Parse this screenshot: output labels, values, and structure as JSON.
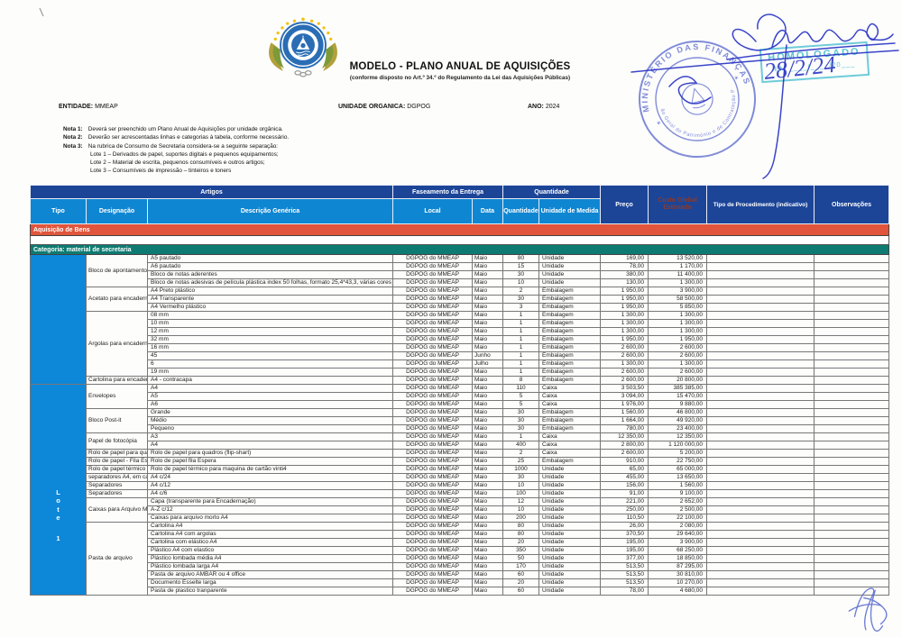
{
  "header": {
    "title": "MODELO - PLANO ANUAL DE AQUISIÇÕES",
    "subtitle": "(conforme disposto no Art.º 34.º do Regulamento da Lei das Aquisições Públicas)",
    "entidade_label": "ENTIDADE:",
    "entidade_value": "MMEAP",
    "unidade_label": "UNIDADE ORGANICA:",
    "unidade_value": "DGPOG",
    "ano_label": "ANO:",
    "ano_value": "2024"
  },
  "notes": [
    {
      "label": "Nota 1:",
      "text": "Deverá ser preenchido um Plano Anual de Aquisições por unidade orgânica."
    },
    {
      "label": "Nota 2:",
      "text": "Deverão ser acrescentadas linhas e categorias à tabela, conforme necessário."
    },
    {
      "label": "Nota 3:",
      "text": "Na rubrica de Consumo de Secretaria considera-se a seguinte separação:"
    }
  ],
  "lotes": [
    "Lote 1 – Derivados de papel, suportes digitais e pequenos equipamentos;",
    "Lote 2 – Material de escrita, pequenos consumíveis e outros artigos;",
    "Lote 3 – Consumíveis de impressão – tinteiros e toners"
  ],
  "stamps": {
    "homologado_line1": "HOMOLOGADO",
    "homologado_line2": "EM ____/____/20___",
    "date_hand": "28/2/24",
    "ministry_outer": "MINISTÉRIO DAS FINANÇAS",
    "ministry_inner": "Direcção Geral do Património e de Contratação Pública"
  },
  "colors": {
    "header_navy": "#1c4598",
    "header_blue": "#0f86d2",
    "band_red": "#e0553b",
    "band_teal": "#0e7b72",
    "stamp_teal": "#29b4c8",
    "stamp_violet": "#6b79d2",
    "ink_blue": "#2a35c5"
  },
  "table": {
    "band_artigos": "Artigos",
    "band_faseamento": "Faseamento da Entrega",
    "band_quantidade": "Quantidade",
    "col_tipo": "Tipo",
    "col_designacao": "Designação",
    "col_descricao": "Descrição Genérica",
    "col_local": "Local",
    "col_data": "Data",
    "col_quantidade": "Quantidade",
    "col_unidade": "Unidade de Medida",
    "col_preco": "Preço",
    "col_custo": "Custo Global Estimado",
    "col_procedimento": "Tipo de Procedimento (indicativo)",
    "col_observacoes": "Observações",
    "section_bens": "Aquisição de Bens",
    "section_categoria": "Categoria: material de secretaria",
    "lote_word": "Lote",
    "lote_number": "1",
    "local_default": "DGPOG do MMEAP",
    "groups": [
      {
        "designacao": "Bloco de apontamentos",
        "rows": [
          {
            "desc": "A5 pautado",
            "data": "Maio",
            "qtd": "80",
            "un": "Unidade",
            "preco": "169,00",
            "custo": "13 520,00"
          },
          {
            "desc": "A6 pautado",
            "data": "Maio",
            "qtd": "15",
            "un": "Unidade",
            "preco": "78,00",
            "custo": "1 170,00"
          },
          {
            "desc": "Bloco de notas aderentes",
            "data": "Maio",
            "qtd": "30",
            "un": "Unidade",
            "preco": "380,00",
            "custo": "11 400,00"
          },
          {
            "desc": "Bloco de notas adesivas de película plástica index 50 folhas, formato 25,4*43,3, várias cores",
            "data": "Maio",
            "qtd": "10",
            "un": "Unidade",
            "preco": "130,00",
            "custo": "1 300,00"
          }
        ]
      },
      {
        "designacao": "Acetato para encadernaç",
        "rows": [
          {
            "desc": "A4 Preto plástico",
            "data": "Maio",
            "qtd": "2",
            "un": "Embalagem",
            "preco": "1 950,00",
            "custo": "3 900,00"
          },
          {
            "desc": "A4 Transparente",
            "data": "Maio",
            "qtd": "30",
            "un": "Embalagem",
            "preco": "1 950,00",
            "custo": "58 500,00"
          },
          {
            "desc": "A4 Vermelho plástico",
            "data": "Maio",
            "qtd": "3",
            "un": "Embalagem",
            "preco": "1 950,00",
            "custo": "5 850,00"
          }
        ]
      },
      {
        "designacao": "Argolas para encadernaç",
        "rows": [
          {
            "desc": "08 mm",
            "data": "Maio",
            "qtd": "1",
            "un": "Embalagem",
            "preco": "1 300,00",
            "custo": "1 300,00"
          },
          {
            "desc": "10 mm",
            "data": "Maio",
            "qtd": "1",
            "un": "Embalagem",
            "preco": "1 300,00",
            "custo": "1 300,00"
          },
          {
            "desc": "12 mm",
            "data": "Maio",
            "qtd": "1",
            "un": "Embalagem",
            "preco": "1 300,00",
            "custo": "1 300,00"
          },
          {
            "desc": "32 mm",
            "data": "Maio",
            "qtd": "1",
            "un": "Embalagem",
            "preco": "1 950,00",
            "custo": "1 950,00"
          },
          {
            "desc": "16 mm",
            "data": "Maio",
            "qtd": "1",
            "un": "Embalagem",
            "preco": "2 600,00",
            "custo": "2 600,00"
          },
          {
            "desc": "45",
            "data": "Junho",
            "qtd": "1",
            "un": "Embalagem",
            "preco": "2 600,00",
            "custo": "2 600,00"
          },
          {
            "desc": "6",
            "data": "Julho",
            "qtd": "1",
            "un": "Embalagem",
            "preco": "1 300,00",
            "custo": "1 300,00"
          },
          {
            "desc": "19 mm",
            "data": "Maio",
            "qtd": "1",
            "un": "Embalagem",
            "preco": "2 600,00",
            "custo": "2 600,00"
          }
        ]
      },
      {
        "designacao": "Cartolina para encaderna",
        "rows": [
          {
            "desc": "A4 - contracapa",
            "data": "Maio",
            "qtd": "8",
            "un": "Embalagem",
            "preco": "2 600,00",
            "custo": "20 800,00"
          }
        ]
      },
      {
        "designacao": "Envelopes",
        "rows": [
          {
            "desc": "A4",
            "data": "Maio",
            "qtd": "110",
            "un": "Caixa",
            "preco": "3 503,50",
            "custo": "385 385,00"
          },
          {
            "desc": "A5",
            "data": "Maio",
            "qtd": "5",
            "un": "Caixa",
            "preco": "3 094,00",
            "custo": "15 470,00"
          },
          {
            "desc": "A6",
            "data": "Maio",
            "qtd": "5",
            "un": "Caixa",
            "preco": "1 976,00",
            "custo": "9 880,00"
          }
        ]
      },
      {
        "designacao": "Bloco Post-it",
        "rows": [
          {
            "desc": "Grande",
            "data": "Maio",
            "qtd": "30",
            "un": "Embalagem",
            "preco": "1 560,00",
            "custo": "46 800,00"
          },
          {
            "desc": "Médio",
            "data": "Maio",
            "qtd": "30",
            "un": "Embalagem",
            "preco": "1 664,00",
            "custo": "49 920,00"
          },
          {
            "desc": "Pequeno",
            "data": "Maio",
            "qtd": "30",
            "un": "Embalagem",
            "preco": "780,00",
            "custo": "23 400,00"
          }
        ]
      },
      {
        "designacao": "Papel de fotocópia",
        "rows": [
          {
            "desc": "A3",
            "data": "Maio",
            "qtd": "1",
            "un": "Caixa",
            "preco": "12 350,00",
            "custo": "12 350,00"
          },
          {
            "desc": "A4",
            "data": "Maio",
            "qtd": "400",
            "un": "Caixa",
            "preco": "2 800,00",
            "custo": "1 120 000,00"
          }
        ]
      },
      {
        "designacao": "Rolo de papel para quadr",
        "rows": [
          {
            "desc": "Rolo de papel para quadros (flip-shart)",
            "data": "Maio",
            "qtd": "2",
            "un": "Caixa",
            "preco": "2 600,00",
            "custo": "5 200,00"
          }
        ]
      },
      {
        "designacao": "Rolo de papel - Fila Espe",
        "rows": [
          {
            "desc": "Rolo de papel  fila Espera",
            "data": "Maio",
            "qtd": "25",
            "un": "Embalagem",
            "preco": "910,00",
            "custo": "22 750,00"
          }
        ]
      },
      {
        "designacao": "Rolo de papel térmico - P",
        "rows": [
          {
            "desc": "Rolo de papel térmico para maquina de cartão vinti4",
            "data": "Maio",
            "qtd": "1000",
            "un": "Unidade",
            "preco": "65,00",
            "custo": "65 000,00"
          }
        ]
      },
      {
        "designacao": "separadores A4, em cart",
        "rows": [
          {
            "desc": "A4 c/24",
            "data": "Maio",
            "qtd": "30",
            "un": "Unidade",
            "preco": "455,00",
            "custo": "13 650,00"
          }
        ]
      },
      {
        "designacao": "Separadores",
        "rows": [
          {
            "desc": "A4 c/12",
            "data": "Maio",
            "qtd": "10",
            "un": "Unidade",
            "preco": "156,00",
            "custo": "1 560,00"
          }
        ]
      },
      {
        "designacao": "Separadores",
        "rows": [
          {
            "desc": "A4 c/6",
            "data": "Maio",
            "qtd": "100",
            "un": "Unidade",
            "preco": "91,00",
            "custo": "9 100,00"
          }
        ]
      },
      {
        "designacao": "Caixas para Arquivo Mort",
        "rows": [
          {
            "desc": "Capa (transparente para Encadernação)",
            "data": "Maio",
            "qtd": "12",
            "un": "Unidade",
            "preco": "221,00",
            "custo": "2 652,00"
          },
          {
            "desc": "A-Z c/12",
            "data": "Maio",
            "qtd": "10",
            "un": "Unidade",
            "preco": "250,00",
            "custo": "2 500,00"
          },
          {
            "desc": "Caixas para arquivo morto A4",
            "data": "Maio",
            "qtd": "200",
            "un": "Unidade",
            "preco": "110,50",
            "custo": "22 100,00"
          }
        ]
      },
      {
        "designacao": "Pasta de arquivo",
        "rows": [
          {
            "desc": "Cartolina A4",
            "data": "Maio",
            "qtd": "80",
            "un": "Unidade",
            "preco": "26,00",
            "custo": "2 080,00"
          },
          {
            "desc": "Cartolina A4 com argolas",
            "data": "Maio",
            "qtd": "80",
            "un": "Unidade",
            "preco": "370,50",
            "custo": "29 640,00"
          },
          {
            "desc": "Cartolina com elástico A4",
            "data": "Maio",
            "qtd": "20",
            "un": "Unidade",
            "preco": "195,00",
            "custo": "3 900,00"
          },
          {
            "desc": "Plástico A4 com elastico",
            "data": "Maio",
            "qtd": "350",
            "un": "Unidade",
            "preco": "195,00",
            "custo": "68 250,00"
          },
          {
            "desc": "Plástico lombada média A4",
            "data": "Maio",
            "qtd": "50",
            "un": "Unidade",
            "preco": "377,00",
            "custo": "18 850,00"
          },
          {
            "desc": "Plástico lombada larga A4",
            "data": "Maio",
            "qtd": "170",
            "un": "Unidade",
            "preco": "513,50",
            "custo": "87 295,00"
          },
          {
            "desc": "Pasta de arquivo  AMBAR ou 4 office",
            "data": "Maio",
            "qtd": "60",
            "un": "Unidade",
            "preco": "513,50",
            "custo": "30 810,00"
          },
          {
            "desc": "Documento Esselte larga",
            "data": "Maio",
            "qtd": "20",
            "un": "Unidade",
            "preco": "513,50",
            "custo": "10 270,00"
          },
          {
            "desc": "Pasta de plastico tranparente",
            "data": "Maio",
            "qtd": "60",
            "un": "Unidade",
            "preco": "78,00",
            "custo": "4 680,00"
          }
        ]
      }
    ]
  }
}
